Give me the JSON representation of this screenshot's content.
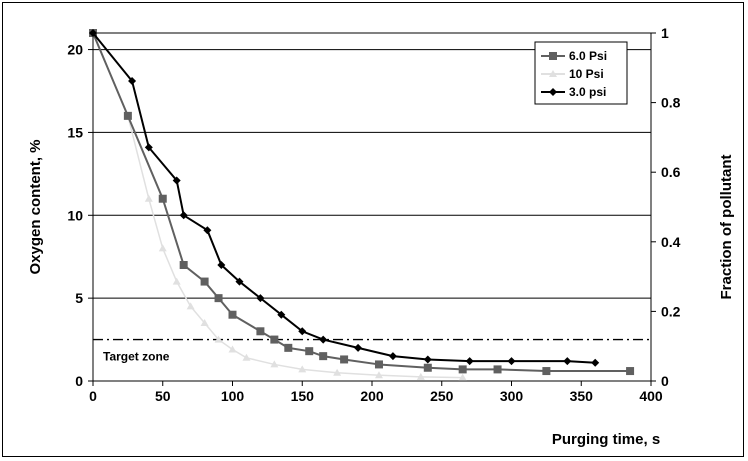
{
  "chart_data": {
    "type": "line",
    "xlabel": "Purging time, s",
    "ylabel": "Oxygen content, %",
    "y2label": "Fraction of pollutant",
    "xlim": [
      0,
      400
    ],
    "ylim": [
      0,
      21
    ],
    "y2lim": [
      0,
      1
    ],
    "x_ticks": [
      "0",
      "50",
      "100",
      "150",
      "200",
      "250",
      "300",
      "350",
      "400"
    ],
    "y_ticks": [
      "0",
      "5",
      "10",
      "15",
      "20"
    ],
    "y2_ticks": [
      "0",
      "0.2",
      "0.4",
      "0.6",
      "0.8",
      "1"
    ],
    "gridlines_y": [
      5,
      10,
      15,
      20
    ],
    "legend_position": "top-right",
    "target_zone": {
      "label": "Target zone",
      "y": 2.5
    },
    "series": [
      {
        "name": "6.0 Psi",
        "color": "#606060",
        "marker": "square",
        "x": [
          0,
          25,
          50,
          65,
          80,
          90,
          100,
          120,
          130,
          140,
          155,
          165,
          180,
          205,
          240,
          265,
          290,
          325,
          385
        ],
        "y": [
          21,
          16,
          11,
          7,
          6,
          5,
          4,
          3,
          2.5,
          2,
          1.8,
          1.5,
          1.3,
          1.0,
          0.8,
          0.7,
          0.7,
          0.6,
          0.6
        ]
      },
      {
        "name": "10 Psi",
        "color": "#e0e0e0",
        "marker": "triangle",
        "x": [
          0,
          25,
          40,
          50,
          60,
          70,
          80,
          90,
          100,
          110,
          130,
          150,
          175,
          205,
          235,
          265
        ],
        "y": [
          21,
          16,
          11,
          8,
          6,
          4.5,
          3.5,
          2.5,
          1.9,
          1.4,
          1.0,
          0.7,
          0.5,
          0.35,
          0.25,
          0.2
        ]
      },
      {
        "name": "3.0 psi",
        "color": "#000000",
        "marker": "diamond",
        "x": [
          0,
          28,
          40,
          60,
          65,
          82,
          92,
          105,
          120,
          135,
          150,
          165,
          190,
          215,
          240,
          270,
          300,
          340,
          360
        ],
        "y": [
          21,
          18.1,
          14.1,
          12.1,
          10,
          9.1,
          7,
          6,
          5,
          4,
          3,
          2.5,
          2,
          1.5,
          1.3,
          1.2,
          1.2,
          1.2,
          1.1
        ]
      }
    ]
  }
}
